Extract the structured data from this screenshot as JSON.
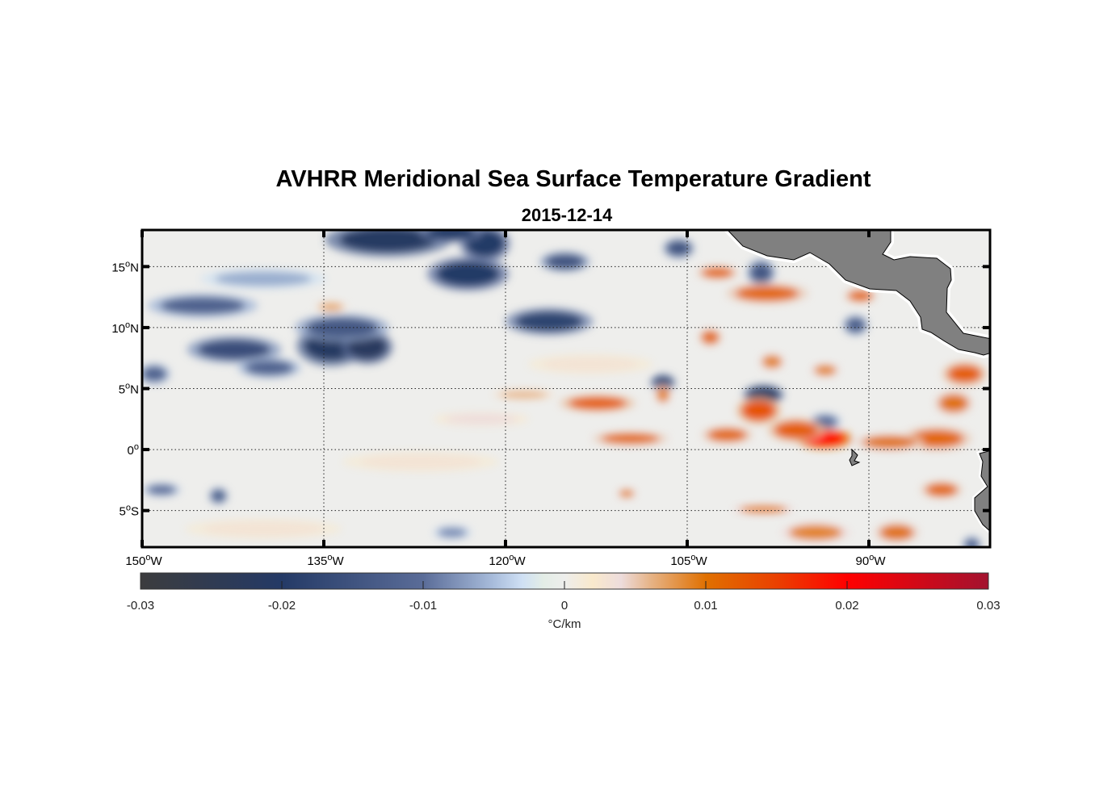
{
  "chart_data": {
    "type": "heatmap",
    "title": "AVHRR Meridional Sea Surface Temperature Gradient",
    "subtitle": "2015-12-14",
    "lon_range": [
      -150,
      -80
    ],
    "lat_range": [
      -8,
      18
    ],
    "grid": true,
    "lon_ticks": [
      {
        "value": -150,
        "num": "150",
        "deg": "o",
        "hemi": "W"
      },
      {
        "value": -135,
        "num": "135",
        "deg": "o",
        "hemi": "W"
      },
      {
        "value": -120,
        "num": "120",
        "deg": "o",
        "hemi": "W"
      },
      {
        "value": -105,
        "num": "105",
        "deg": "o",
        "hemi": "W"
      },
      {
        "value": -90,
        "num": "90",
        "deg": "o",
        "hemi": "W"
      }
    ],
    "lat_ticks": [
      {
        "value": 15,
        "num": "15",
        "deg": "o",
        "hemi": "N"
      },
      {
        "value": 10,
        "num": "10",
        "deg": "o",
        "hemi": "N"
      },
      {
        "value": 5,
        "num": "5",
        "deg": "o",
        "hemi": "N"
      },
      {
        "value": 0,
        "num": "0",
        "deg": "o",
        "hemi": ""
      },
      {
        "value": -5,
        "num": "5",
        "deg": "o",
        "hemi": "S"
      }
    ],
    "colorbar": {
      "range": [
        -0.03,
        0.03
      ],
      "ticks": [
        "-0.03",
        "-0.02",
        "-0.01",
        "0",
        "0.01",
        "0.02",
        "0.03"
      ],
      "label": "°C/km",
      "stops": [
        [
          -0.03,
          "#3c3c3e"
        ],
        [
          -0.02,
          "#243a66"
        ],
        [
          -0.01,
          "#5a6c98"
        ],
        [
          -0.005,
          "#a9bddc"
        ],
        [
          -0.003,
          "#cfe0f4"
        ],
        [
          -0.0015,
          "#e3ede6"
        ],
        [
          0,
          "#eeeeec"
        ],
        [
          0.002,
          "#f9e9cc"
        ],
        [
          0.004,
          "#eddcdc"
        ],
        [
          0.006,
          "#e6b58a"
        ],
        [
          0.01,
          "#e07000"
        ],
        [
          0.015,
          "#ea4000"
        ],
        [
          0.02,
          "#ff0000"
        ],
        [
          0.03,
          "#a3122f"
        ]
      ]
    },
    "land_color": "#808080",
    "features": [
      {
        "lon": -134.4,
        "lat": 8.5,
        "value": -0.021,
        "rx": 2.2,
        "ry": 1.2
      },
      {
        "lon": -131.4,
        "lat": 8.4,
        "value": -0.022,
        "rx": 1.6,
        "ry": 1.0
      },
      {
        "lon": -133.5,
        "lat": 10.0,
        "value": -0.014,
        "rx": 3.0,
        "ry": 0.8
      },
      {
        "lon": -142.4,
        "lat": 8.2,
        "value": -0.016,
        "rx": 3.0,
        "ry": 0.8
      },
      {
        "lon": -139.5,
        "lat": 6.7,
        "value": -0.012,
        "rx": 2.0,
        "ry": 0.6
      },
      {
        "lon": -123.1,
        "lat": 14.4,
        "value": -0.02,
        "rx": 2.6,
        "ry": 1.0
      },
      {
        "lon": -121.7,
        "lat": 16.9,
        "value": -0.02,
        "rx": 1.6,
        "ry": 1.1
      },
      {
        "lon": -129.7,
        "lat": 17.2,
        "value": -0.021,
        "rx": 4.0,
        "ry": 1.0
      },
      {
        "lon": -124.5,
        "lat": 17.8,
        "value": -0.02,
        "rx": 2.0,
        "ry": 0.6
      },
      {
        "lon": -116.4,
        "lat": 10.5,
        "value": -0.018,
        "rx": 2.8,
        "ry": 0.8
      },
      {
        "lon": -115.1,
        "lat": 15.4,
        "value": -0.015,
        "rx": 1.6,
        "ry": 0.6
      },
      {
        "lon": -145.0,
        "lat": 11.8,
        "value": -0.012,
        "rx": 3.5,
        "ry": 0.7
      },
      {
        "lon": -98.7,
        "lat": 4.5,
        "value": -0.021,
        "rx": 1.3,
        "ry": 0.6
      },
      {
        "lon": -107.0,
        "lat": 5.5,
        "value": -0.018,
        "rx": 0.8,
        "ry": 0.5
      },
      {
        "lon": -91.1,
        "lat": 10.2,
        "value": -0.013,
        "rx": 0.8,
        "ry": 0.6
      },
      {
        "lon": -98.9,
        "lat": 14.5,
        "value": -0.014,
        "rx": 0.9,
        "ry": 0.8
      },
      {
        "lon": -105.7,
        "lat": 16.5,
        "value": -0.015,
        "rx": 1.0,
        "ry": 0.6
      },
      {
        "lon": -149.0,
        "lat": 6.2,
        "value": -0.012,
        "rx": 1.0,
        "ry": 0.6
      },
      {
        "lon": -148.4,
        "lat": -3.3,
        "value": -0.01,
        "rx": 1.2,
        "ry": 0.4
      },
      {
        "lon": -143.7,
        "lat": -3.8,
        "value": -0.013,
        "rx": 0.6,
        "ry": 0.5
      },
      {
        "lon": -124.4,
        "lat": -6.8,
        "value": -0.008,
        "rx": 1.2,
        "ry": 0.4
      },
      {
        "lon": -93.6,
        "lat": 2.3,
        "value": -0.01,
        "rx": 1.0,
        "ry": 0.5
      },
      {
        "lon": -81.5,
        "lat": -7.8,
        "value": -0.012,
        "rx": 0.6,
        "ry": 0.5
      },
      {
        "lon": -140.0,
        "lat": 14.0,
        "value": -0.006,
        "rx": 4.0,
        "ry": 0.6
      },
      {
        "lon": -93.7,
        "lat": 0.9,
        "value": 0.02,
        "rx": 1.8,
        "ry": 0.6
      },
      {
        "lon": -96.0,
        "lat": 1.6,
        "value": 0.012,
        "rx": 1.8,
        "ry": 0.7
      },
      {
        "lon": -99.1,
        "lat": 3.2,
        "value": 0.013,
        "rx": 1.4,
        "ry": 0.8
      },
      {
        "lon": -101.7,
        "lat": 1.2,
        "value": 0.011,
        "rx": 1.6,
        "ry": 0.5
      },
      {
        "lon": -112.4,
        "lat": 3.8,
        "value": 0.012,
        "rx": 2.4,
        "ry": 0.5
      },
      {
        "lon": -109.7,
        "lat": 0.9,
        "value": 0.011,
        "rx": 2.4,
        "ry": 0.4
      },
      {
        "lon": -98.4,
        "lat": 12.8,
        "value": 0.011,
        "rx": 2.6,
        "ry": 0.6
      },
      {
        "lon": -102.5,
        "lat": 14.5,
        "value": 0.011,
        "rx": 1.3,
        "ry": 0.4
      },
      {
        "lon": -90.7,
        "lat": 12.6,
        "value": 0.011,
        "rx": 1.0,
        "ry": 0.4
      },
      {
        "lon": -103.1,
        "lat": 9.2,
        "value": 0.011,
        "rx": 0.7,
        "ry": 0.5
      },
      {
        "lon": -98.0,
        "lat": 7.2,
        "value": 0.009,
        "rx": 0.8,
        "ry": 0.5
      },
      {
        "lon": -93.6,
        "lat": 6.5,
        "value": 0.009,
        "rx": 0.9,
        "ry": 0.4
      },
      {
        "lon": -82.1,
        "lat": 6.2,
        "value": 0.012,
        "rx": 1.4,
        "ry": 0.7
      },
      {
        "lon": -83.0,
        "lat": 3.8,
        "value": 0.01,
        "rx": 1.2,
        "ry": 0.7
      },
      {
        "lon": -84.4,
        "lat": 0.9,
        "value": 0.011,
        "rx": 2.2,
        "ry": 0.7
      },
      {
        "lon": -88.3,
        "lat": 0.6,
        "value": 0.01,
        "rx": 2.2,
        "ry": 0.5
      },
      {
        "lon": -84.0,
        "lat": -3.3,
        "value": 0.011,
        "rx": 1.3,
        "ry": 0.5
      },
      {
        "lon": -94.4,
        "lat": -6.8,
        "value": 0.009,
        "rx": 2.2,
        "ry": 0.6
      },
      {
        "lon": -87.7,
        "lat": -6.8,
        "value": 0.01,
        "rx": 1.4,
        "ry": 0.6
      },
      {
        "lon": -98.7,
        "lat": -4.9,
        "value": 0.009,
        "rx": 2.0,
        "ry": 0.3
      },
      {
        "lon": -110.0,
        "lat": -3.6,
        "value": 0.009,
        "rx": 0.6,
        "ry": 0.3
      },
      {
        "lon": -107.0,
        "lat": 4.5,
        "value": 0.009,
        "rx": 0.5,
        "ry": 0.6
      },
      {
        "lon": -134.4,
        "lat": 11.7,
        "value": 0.007,
        "rx": 1.0,
        "ry": 0.3
      },
      {
        "lon": -118.5,
        "lat": 4.5,
        "value": 0.006,
        "rx": 2.0,
        "ry": 0.3
      },
      {
        "lon": -122.0,
        "lat": 2.5,
        "value": 0.004,
        "rx": 3.0,
        "ry": 0.4
      },
      {
        "lon": -127.0,
        "lat": -1.0,
        "value": 0.003,
        "rx": 5.0,
        "ry": 0.6
      },
      {
        "lon": -140.0,
        "lat": -6.5,
        "value": 0.003,
        "rx": 5.0,
        "ry": 0.6
      },
      {
        "lon": -113.0,
        "lat": 7.0,
        "value": 0.003,
        "rx": 4.0,
        "ry": 0.6
      }
    ]
  }
}
